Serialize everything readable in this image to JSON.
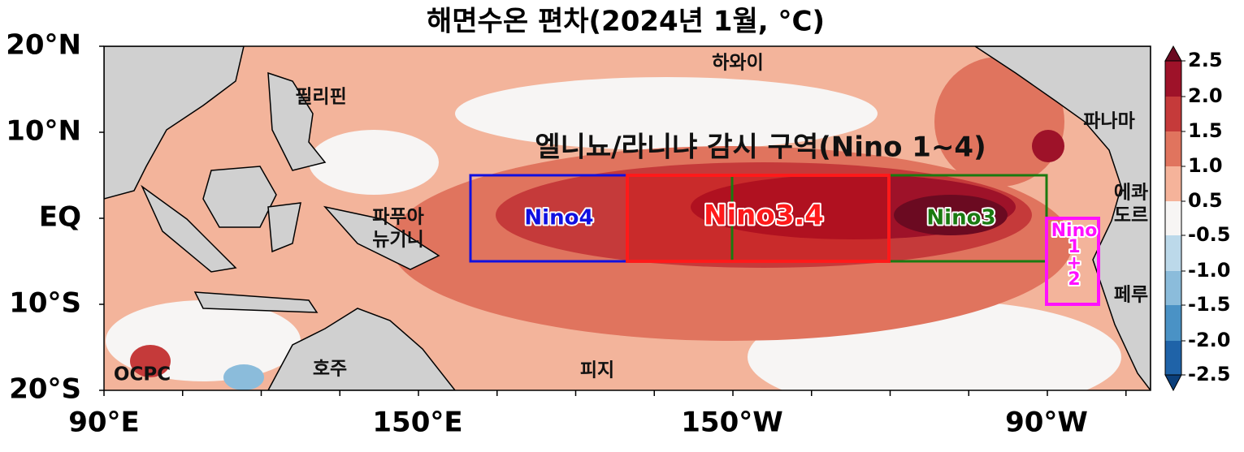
{
  "title": "해면수온 편차(2024년 1월, °C)",
  "lat_labels": [
    "20°N",
    "10°N",
    "EQ",
    "10°S",
    "20°S"
  ],
  "lon_labels": [
    "90°E",
    "150°E",
    "150°W",
    "90°W"
  ],
  "places": [
    {
      "lines": [
        "하와이"
      ]
    },
    {
      "lines": [
        "필리핀"
      ]
    },
    {
      "lines": [
        "파나마"
      ]
    },
    {
      "lines": [
        "에콰",
        "도르"
      ]
    },
    {
      "lines": [
        "파푸아",
        "뉴기니"
      ]
    },
    {
      "lines": [
        "페루"
      ]
    },
    {
      "lines": [
        "호주"
      ]
    },
    {
      "lines": [
        "피지"
      ]
    }
  ],
  "credit": "OCPC",
  "region_title": "엘니뇨/라니냐 감시 구역(Nino 1~4)",
  "regions": [
    {
      "lines": [
        "Nino4"
      ],
      "color": "#1010e0"
    },
    {
      "lines": [
        "Nino3.4"
      ],
      "color": "#ff1a1a"
    },
    {
      "lines": [
        "Nino3"
      ],
      "color": "#1a7a10"
    },
    {
      "lines": [
        "Nino",
        "1",
        "+",
        "2"
      ],
      "color": "#ff10ff"
    }
  ],
  "colorbar": {
    "labels": [
      "2.5",
      "2.0",
      "1.5",
      "1.0",
      "0.5",
      "-0.5",
      "-1.0",
      "-1.5",
      "-2.0",
      "-2.5"
    ],
    "colors": [
      "#6b0a21",
      "#9e1229",
      "#c53a3a",
      "#e0745e",
      "#f5b39a",
      "#f7f5f4",
      "#bcd9ea",
      "#8bbcdb",
      "#4a92c5",
      "#1f63a8",
      "#0b3f7a"
    ]
  }
}
